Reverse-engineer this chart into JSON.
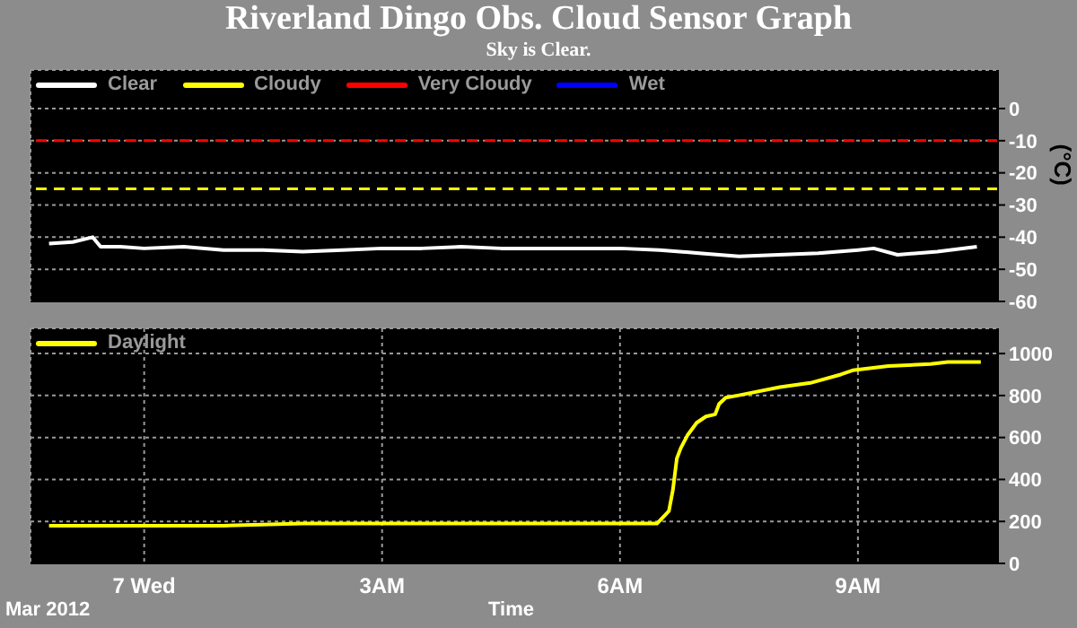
{
  "chart_data": [
    {
      "type": "line",
      "title": "Riverland Dingo Obs. Cloud Sensor Graph",
      "subtitle": "Sky is Clear.",
      "ylabel": "(°C)",
      "x": [
        "2012-03-06T22:48",
        "2012-03-06T23:06",
        "2012-03-06T23:21",
        "2012-03-06T23:27",
        "2012-03-06T23:42",
        "2012-03-07T00:00",
        "2012-03-07T00:30",
        "2012-03-07T01:00",
        "2012-03-07T01:30",
        "2012-03-07T02:00",
        "2012-03-07T02:30",
        "2012-03-07T03:00",
        "2012-03-07T03:30",
        "2012-03-07T04:00",
        "2012-03-07T04:30",
        "2012-03-07T05:00",
        "2012-03-07T05:30",
        "2012-03-07T06:00",
        "2012-03-07T06:30",
        "2012-03-07T07:00",
        "2012-03-07T07:30",
        "2012-03-07T08:00",
        "2012-03-07T08:30",
        "2012-03-07T09:00",
        "2012-03-07T09:12",
        "2012-03-07T09:30",
        "2012-03-07T10:00",
        "2012-03-07T10:30"
      ],
      "series": [
        {
          "name": "Clear",
          "color": "#ffffff",
          "values": [
            -42,
            -41.5,
            -40,
            -43,
            -43,
            -43.5,
            -43,
            -44,
            -44,
            -44.5,
            -44,
            -43.5,
            -43.5,
            -43,
            -43.5,
            -43.5,
            -43.5,
            -43.5,
            -44,
            -45,
            -46,
            -45.5,
            -45,
            -44,
            -43.5,
            -45.5,
            -44.5,
            -43
          ]
        },
        {
          "name": "Cloudy",
          "color": "#ffff00",
          "values": [
            null,
            null,
            null,
            null,
            null,
            null,
            null,
            null,
            null,
            null,
            null,
            null,
            null,
            null,
            null,
            null,
            null,
            null,
            null,
            null,
            null,
            null,
            null,
            null,
            null,
            null,
            null,
            null
          ]
        },
        {
          "name": "Very Cloudy",
          "color": "#ff0000",
          "values": [
            null,
            null,
            null,
            null,
            null,
            null,
            null,
            null,
            null,
            null,
            null,
            null,
            null,
            null,
            null,
            null,
            null,
            null,
            null,
            null,
            null,
            null,
            null,
            null,
            null,
            null,
            null,
            null
          ]
        },
        {
          "name": "Wet",
          "color": "#0000ff",
          "values": [
            null,
            null,
            null,
            null,
            null,
            null,
            null,
            null,
            null,
            null,
            null,
            null,
            null,
            null,
            null,
            null,
            null,
            null,
            null,
            null,
            null,
            null,
            null,
            null,
            null,
            null,
            null,
            null
          ]
        }
      ],
      "ref_lines": [
        {
          "axis": "y",
          "value": -10,
          "color": "#ff0000",
          "line_style": "dashed"
        },
        {
          "axis": "y",
          "value": -25,
          "color": "#ffff00",
          "line_style": "dashed"
        }
      ],
      "xlim": [
        "2012-03-06T22:34",
        "2012-03-07T10:46"
      ],
      "xticks": [
        {
          "value": "2012-03-07",
          "label": null
        },
        {
          "value": "2012-03-07T03:00",
          "label": null
        },
        {
          "value": "2012-03-07T06:00",
          "label": null
        },
        {
          "value": "2012-03-07T09:00",
          "label": null
        }
      ],
      "ylim": [
        -60,
        12
      ],
      "yticks": [
        -60,
        -50,
        -40,
        -30,
        -20,
        -10,
        0
      ],
      "tick_labels": "y",
      "grid": true,
      "legend": "top left",
      "marker": "none"
    },
    {
      "type": "line",
      "xlabel": "Time",
      "annotations": [
        "Mar 2012"
      ],
      "x": [
        "2012-03-06T22:48",
        "2012-03-07T00:00",
        "2012-03-07T01:00",
        "2012-03-07T02:00",
        "2012-03-07T03:00",
        "2012-03-07T04:00",
        "2012-03-07T05:00",
        "2012-03-07T06:00",
        "2012-03-07T06:21",
        "2012-03-07T06:28",
        "2012-03-07T06:37",
        "2012-03-07T06:40",
        "2012-03-07T06:43",
        "2012-03-07T06:46",
        "2012-03-07T06:51",
        "2012-03-07T06:58",
        "2012-03-07T07:05",
        "2012-03-07T07:12",
        "2012-03-07T07:15",
        "2012-03-07T07:20",
        "2012-03-07T07:29",
        "2012-03-07T08:01",
        "2012-03-07T08:24",
        "2012-03-07T08:47",
        "2012-03-07T08:56",
        "2012-03-07T09:23",
        "2012-03-07T09:55",
        "2012-03-07T10:08",
        "2012-03-07T10:33"
      ],
      "series": [
        {
          "name": "Daylight",
          "color": "#ffff00",
          "values": [
            180,
            180,
            180,
            190,
            190,
            190,
            190,
            190,
            190,
            190,
            250,
            350,
            500,
            550,
            610,
            670,
            700,
            710,
            760,
            790,
            800,
            840,
            860,
            900,
            920,
            940,
            950,
            960,
            960
          ]
        }
      ],
      "xlim": [
        "2012-03-06T22:34",
        "2012-03-07T10:46"
      ],
      "xticks": [
        {
          "value": "2012-03-07",
          "label": "7 Wed"
        },
        {
          "value": "2012-03-07T03:00",
          "label": "3AM"
        },
        {
          "value": "2012-03-07T06:00",
          "label": "6AM"
        },
        {
          "value": "2012-03-07T09:00",
          "label": "9AM"
        }
      ],
      "ylim": [
        0,
        1120
      ],
      "yticks": [
        0,
        200,
        400,
        600,
        800,
        1000
      ],
      "grid": true,
      "legend": "top left",
      "marker": "none"
    }
  ]
}
